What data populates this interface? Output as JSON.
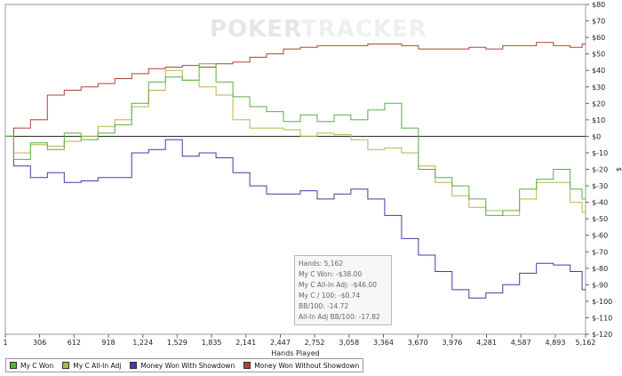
{
  "watermark": {
    "part1": "POKER",
    "part2": "TRACKER"
  },
  "legend": [
    {
      "label": "My C Won",
      "color": "#55b043"
    },
    {
      "label": "My C All-In Adj",
      "color": "#b5b64a"
    },
    {
      "label": "Money Won With Showdown",
      "color": "#3c3fa5"
    },
    {
      "label": "Money Won Without Showdown",
      "color": "#b04234"
    }
  ],
  "tooltip": {
    "hands": "Hands: 5,162",
    "won": "My C Won: -$38.00",
    "allin": "My C All-In Adj: -$46.00",
    "per100": "My C / 100: -$0.74",
    "bb100": "BB/100: -14.72",
    "allin_bb100": "All-In Adj BB/100: -17.82"
  },
  "chart_data": {
    "type": "line",
    "title": "",
    "xlabel": "Hands Played",
    "ylabel": "$",
    "xlim": [
      1,
      5162
    ],
    "ylim": [
      -120,
      80
    ],
    "x_ticks": [
      "1",
      "306",
      "612",
      "918",
      "1,224",
      "1,529",
      "1,835",
      "2,141",
      "2,447",
      "2,752",
      "3,058",
      "3,364",
      "3,670",
      "3,976",
      "4,281",
      "4,587",
      "4,893",
      "5,162"
    ],
    "y_ticks": [
      "$80",
      "$70",
      "$60",
      "$50",
      "$40",
      "$30",
      "$20",
      "$10",
      "$0",
      "$-10",
      "$-20",
      "$-30",
      "$-40",
      "$-50",
      "$-60",
      "$-70",
      "$-80",
      "$-90",
      "$-100",
      "$-110",
      "$-120"
    ],
    "x": [
      1,
      150,
      300,
      450,
      600,
      750,
      900,
      1050,
      1200,
      1350,
      1500,
      1650,
      1800,
      1950,
      2100,
      2250,
      2400,
      2550,
      2700,
      2850,
      3000,
      3150,
      3300,
      3450,
      3600,
      3750,
      3900,
      4050,
      4200,
      4350,
      4500,
      4650,
      4800,
      4950,
      5100,
      5162
    ],
    "series": [
      {
        "name": "My C Won",
        "color": "#55b043",
        "values": [
          0,
          -14,
          -4,
          -8,
          2,
          -2,
          2,
          7,
          20,
          33,
          36,
          34,
          44,
          33,
          24,
          18,
          15,
          9,
          13,
          9,
          13,
          10,
          16,
          20,
          5,
          -20,
          -25,
          -30,
          -38,
          -48,
          -45,
          -32,
          -26,
          -20,
          -32,
          -38
        ]
      },
      {
        "name": "My C All-In Adj",
        "color": "#b5b64a",
        "values": [
          0,
          -10,
          -5,
          -6,
          -3,
          0,
          6,
          10,
          18,
          28,
          40,
          34,
          30,
          25,
          10,
          5,
          5,
          4,
          0,
          2,
          1,
          -2,
          -8,
          -7,
          -10,
          -18,
          -28,
          -36,
          -43,
          -45,
          -48,
          -38,
          -28,
          -28,
          -40,
          -46
        ]
      },
      {
        "name": "Money Won With Showdown",
        "color": "#3c3fa5",
        "values": [
          0,
          -18,
          -25,
          -22,
          -28,
          -27,
          -25,
          -25,
          -10,
          -8,
          -2,
          -12,
          -10,
          -13,
          -22,
          -30,
          -35,
          -35,
          -33,
          -38,
          -35,
          -32,
          -38,
          -48,
          -62,
          -72,
          -82,
          -93,
          -98,
          -95,
          -90,
          -83,
          -77,
          -78,
          -82,
          -93
        ]
      },
      {
        "name": "Money Won Without Showdown",
        "color": "#b04234",
        "values": [
          0,
          5,
          10,
          25,
          28,
          30,
          32,
          35,
          38,
          41,
          42,
          43,
          42,
          44,
          45,
          48,
          50,
          53,
          54,
          55,
          55,
          55,
          56,
          56,
          55,
          53,
          53,
          53,
          54,
          53,
          55,
          55,
          57,
          55,
          54,
          56
        ]
      }
    ],
    "grid": false,
    "legend_position": "bottom"
  }
}
